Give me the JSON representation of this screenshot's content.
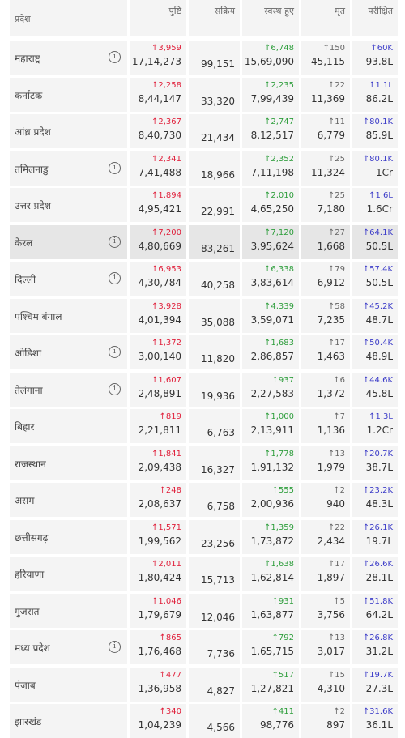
{
  "headers": {
    "state": "प्रदेश",
    "confirmed": "पुष्टि",
    "active": "सक्रिय",
    "recovered": "स्वस्थ हुए",
    "deceased": "मृत",
    "tested": "परीक्षित"
  },
  "rows": [
    {
      "name": "महाराष्ट्र",
      "info": true,
      "conf_d": "↑3,959",
      "conf": "17,14,273",
      "active": "99,151",
      "rec_d": "↑6,748",
      "rec": "15,69,090",
      "dec_d": "↑150",
      "dec": "45,115",
      "test_d": "↑60K",
      "test": "93.8L"
    },
    {
      "name": "कर्नाटक",
      "info": false,
      "conf_d": "↑2,258",
      "conf": "8,44,147",
      "active": "33,320",
      "rec_d": "↑2,235",
      "rec": "7,99,439",
      "dec_d": "↑22",
      "dec": "11,369",
      "test_d": "↑1.1L",
      "test": "86.2L"
    },
    {
      "name": "आंध्र प्रदेश",
      "info": false,
      "conf_d": "↑2,367",
      "conf": "8,40,730",
      "active": "21,434",
      "rec_d": "↑2,747",
      "rec": "8,12,517",
      "dec_d": "↑11",
      "dec": "6,779",
      "test_d": "↑80.1K",
      "test": "85.9L"
    },
    {
      "name": "तमिलनाडु",
      "info": true,
      "conf_d": "↑2,341",
      "conf": "7,41,488",
      "active": "18,966",
      "rec_d": "↑2,352",
      "rec": "7,11,198",
      "dec_d": "↑25",
      "dec": "11,324",
      "test_d": "↑80.1K",
      "test": "1Cr"
    },
    {
      "name": "उत्तर प्रदेश",
      "info": false,
      "conf_d": "↑1,894",
      "conf": "4,95,421",
      "active": "22,991",
      "rec_d": "↑2,010",
      "rec": "4,65,250",
      "dec_d": "↑25",
      "dec": "7,180",
      "test_d": "↑1.6L",
      "test": "1.6Cr"
    },
    {
      "name": "केरल",
      "info": true,
      "highlight": true,
      "conf_d": "↑7,200",
      "conf": "4,80,669",
      "active": "83,261",
      "rec_d": "↑7,120",
      "rec": "3,95,624",
      "dec_d": "↑27",
      "dec": "1,668",
      "test_d": "↑64.1K",
      "test": "50.5L"
    },
    {
      "name": "दिल्ली",
      "info": true,
      "conf_d": "↑6,953",
      "conf": "4,30,784",
      "active": "40,258",
      "rec_d": "↑6,338",
      "rec": "3,83,614",
      "dec_d": "↑79",
      "dec": "6,912",
      "test_d": "↑57.4K",
      "test": "50.5L"
    },
    {
      "name": "पश्चिम बंगाल",
      "info": false,
      "conf_d": "↑3,928",
      "conf": "4,01,394",
      "active": "35,088",
      "rec_d": "↑4,339",
      "rec": "3,59,071",
      "dec_d": "↑58",
      "dec": "7,235",
      "test_d": "↑45.2K",
      "test": "48.7L"
    },
    {
      "name": "ओडिशा",
      "info": true,
      "conf_d": "↑1,372",
      "conf": "3,00,140",
      "active": "11,820",
      "rec_d": "↑1,683",
      "rec": "2,86,857",
      "dec_d": "↑17",
      "dec": "1,463",
      "test_d": "↑50.4K",
      "test": "48.9L"
    },
    {
      "name": "तेलंगाना",
      "info": true,
      "conf_d": "↑1,607",
      "conf": "2,48,891",
      "active": "19,936",
      "rec_d": "↑937",
      "rec": "2,27,583",
      "dec_d": "↑6",
      "dec": "1,372",
      "test_d": "↑44.6K",
      "test": "45.8L"
    },
    {
      "name": "बिहार",
      "info": false,
      "conf_d": "↑819",
      "conf": "2,21,811",
      "active": "6,763",
      "rec_d": "↑1,000",
      "rec": "2,13,911",
      "dec_d": "↑7",
      "dec": "1,136",
      "test_d": "↑1.3L",
      "test": "1.2Cr"
    },
    {
      "name": "राजस्थान",
      "info": false,
      "conf_d": "↑1,841",
      "conf": "2,09,438",
      "active": "16,327",
      "rec_d": "↑1,778",
      "rec": "1,91,132",
      "dec_d": "↑13",
      "dec": "1,979",
      "test_d": "↑20.7K",
      "test": "38.7L"
    },
    {
      "name": "असम",
      "info": false,
      "conf_d": "↑248",
      "conf": "2,08,637",
      "active": "6,758",
      "rec_d": "↑555",
      "rec": "2,00,936",
      "dec_d": "↑2",
      "dec": "940",
      "test_d": "↑23.2K",
      "test": "48.3L"
    },
    {
      "name": "छत्तीसगढ़",
      "info": false,
      "conf_d": "↑1,571",
      "conf": "1,99,562",
      "active": "23,256",
      "rec_d": "↑1,359",
      "rec": "1,73,872",
      "dec_d": "↑22",
      "dec": "2,434",
      "test_d": "↑26.1K",
      "test": "19.7L"
    },
    {
      "name": "हरियाणा",
      "info": false,
      "conf_d": "↑2,011",
      "conf": "1,80,424",
      "active": "15,713",
      "rec_d": "↑1,638",
      "rec": "1,62,814",
      "dec_d": "↑17",
      "dec": "1,897",
      "test_d": "↑26.6K",
      "test": "28.1L"
    },
    {
      "name": "गुजरात",
      "info": false,
      "conf_d": "↑1,046",
      "conf": "1,79,679",
      "active": "12,046",
      "rec_d": "↑931",
      "rec": "1,63,877",
      "dec_d": "↑5",
      "dec": "3,756",
      "test_d": "↑51.8K",
      "test": "64.2L"
    },
    {
      "name": "मध्य प्रदेश",
      "info": true,
      "conf_d": "↑865",
      "conf": "1,76,468",
      "active": "7,736",
      "rec_d": "↑792",
      "rec": "1,65,715",
      "dec_d": "↑13",
      "dec": "3,017",
      "test_d": "↑26.8K",
      "test": "31.2L"
    },
    {
      "name": "पंजाब",
      "info": false,
      "conf_d": "↑477",
      "conf": "1,36,958",
      "active": "4,827",
      "rec_d": "↑517",
      "rec": "1,27,821",
      "dec_d": "↑15",
      "dec": "4,310",
      "test_d": "↑19.7K",
      "test": "27.3L"
    },
    {
      "name": "झारखंड",
      "info": false,
      "conf_d": "↑340",
      "conf": "1,04,239",
      "active": "4,566",
      "rec_d": "↑411",
      "rec": "98,776",
      "dec_d": "↑2",
      "dec": "897",
      "test_d": "↑31.6K",
      "test": "36.1L"
    }
  ]
}
